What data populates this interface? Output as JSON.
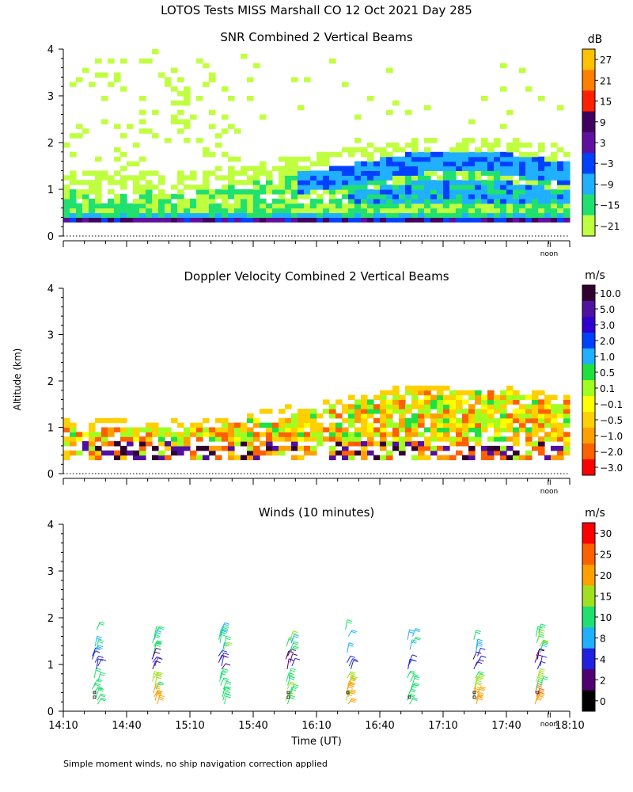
{
  "main_title": "LOTOS Tests MISS Marshall CO  12 Oct 2021 Day 285",
  "y_axis_label": "Altitude (km)",
  "footnote": "Simple moment winds, no ship navigation correction applied",
  "noon_label": "noon",
  "noon_marker": "II",
  "chart_data": [
    {
      "type": "heatmap",
      "title": "SNR Combined 2 Vertical Beams",
      "ylabel": "Altitude (km)",
      "ylim": [
        0,
        4
      ],
      "yticks": [
        "0",
        "1",
        "2",
        "3",
        "4"
      ],
      "colorbar": {
        "unit": "dB",
        "labels": [
          "27",
          "21",
          "15",
          "9",
          "3",
          "−3",
          "−9",
          "−15",
          "−21"
        ],
        "colors": [
          "#ffc000",
          "#ff7f00",
          "#ff2000",
          "#400060",
          "#6010a0",
          "#0040ff",
          "#20b0ff",
          "#20e070",
          "#c0ff40"
        ]
      }
    },
    {
      "type": "heatmap",
      "title": "Doppler Velocity Combined 2 Vertical Beams",
      "ylabel": "Altitude (km)",
      "ylim": [
        0,
        4
      ],
      "yticks": [
        "0",
        "1",
        "2",
        "3",
        "4"
      ],
      "colorbar": {
        "unit": "m/s",
        "labels": [
          "10.0",
          "5.0",
          "3.0",
          "2.0",
          "1.0",
          "0.5",
          "0.1",
          "−0.1",
          "−0.5",
          "−1.0",
          "−2.0",
          "−3.0"
        ],
        "colors": [
          "#300030",
          "#5010a0",
          "#3000d0",
          "#0040ff",
          "#20b0ff",
          "#20e040",
          "#a0ff20",
          "#ffff00",
          "#ffd000",
          "#ffa000",
          "#ff6000",
          "#ff0000"
        ]
      }
    },
    {
      "type": "scatter",
      "title": "Winds (10 minutes)",
      "xlabel": "Time (UT)",
      "ylabel": "Altitude (km)",
      "ylim": [
        0,
        4
      ],
      "yticks": [
        "0",
        "1",
        "2",
        "3",
        "4"
      ],
      "xticks": [
        "14:10",
        "14:40",
        "15:10",
        "15:40",
        "16:10",
        "16:40",
        "17:10",
        "17:40",
        "18:10"
      ],
      "colorbar": {
        "unit": "m/s",
        "labels": [
          "30",
          "25",
          "20",
          "15",
          "10",
          "8",
          "4",
          "2",
          "0"
        ],
        "colors": [
          "#ff0000",
          "#ff6000",
          "#ffa000",
          "#a0e020",
          "#20e070",
          "#20b0ff",
          "#2020e0",
          "#500070",
          "#000000"
        ]
      },
      "profiles_time": [
        "14:30",
        "15:00",
        "15:30",
        "16:00",
        "16:30",
        "17:00",
        "17:30",
        "18:00"
      ]
    }
  ]
}
